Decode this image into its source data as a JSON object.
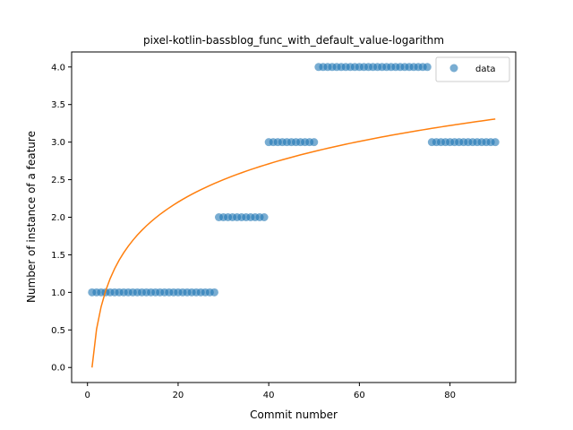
{
  "chart_data": {
    "type": "scatter",
    "title": "pixel-kotlin-bassblog_func_with_default_value-logarithm",
    "xlabel": "Commit number",
    "ylabel": "Number of instance of a feature",
    "xlim": [
      -3.5,
      94.5
    ],
    "ylim": [
      -0.2,
      4.2
    ],
    "x_ticks": [
      0,
      20,
      40,
      60,
      80
    ],
    "y_ticks": [
      0.0,
      0.5,
      1.0,
      1.5,
      2.0,
      2.5,
      3.0,
      3.5,
      4.0
    ],
    "x_tick_labels": [
      "0",
      "20",
      "40",
      "60",
      "80"
    ],
    "y_tick_labels": [
      "0.0",
      "0.5",
      "1.0",
      "1.5",
      "2.0",
      "2.5",
      "3.0",
      "3.5",
      "4.0"
    ],
    "grid": false,
    "legend": {
      "position": "top-right",
      "entries": [
        "data"
      ]
    },
    "series": [
      {
        "name": "data",
        "kind": "scatter",
        "color": "#1f77b4",
        "segments": [
          {
            "x_from": 1,
            "x_to": 28,
            "y": 1
          },
          {
            "x_from": 29,
            "x_to": 39,
            "y": 2
          },
          {
            "x_from": 40,
            "x_to": 50,
            "y": 3
          },
          {
            "x_from": 51,
            "x_to": 75,
            "y": 4
          },
          {
            "x_from": 76,
            "x_to": 90,
            "y": 3
          }
        ]
      },
      {
        "kind": "line",
        "color": "#ff7f0e",
        "model": "logarithmic",
        "x_range": [
          1,
          90
        ],
        "coef_a": 0,
        "coef_b": 0.735
      }
    ]
  }
}
